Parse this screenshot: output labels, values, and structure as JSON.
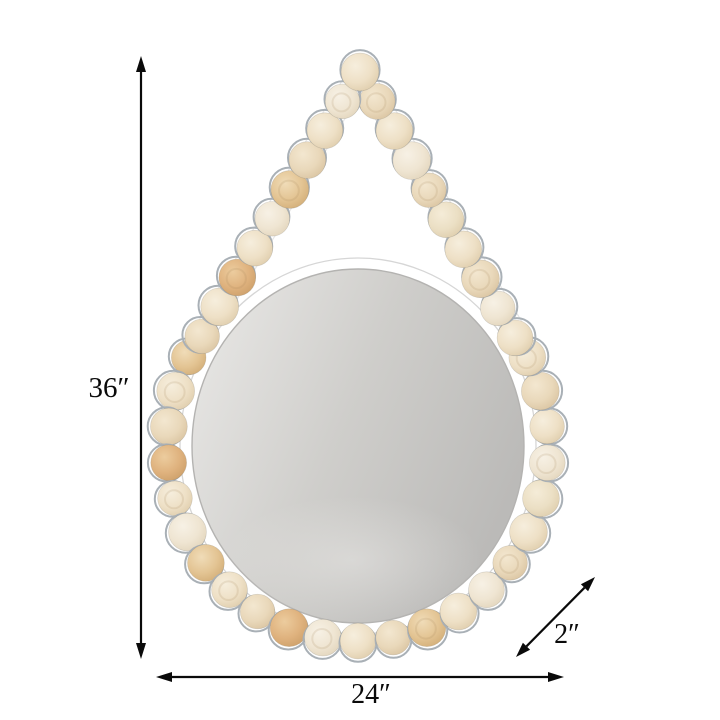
{
  "diagram": {
    "subject": "beaded-teardrop-hanging-mirror",
    "dimensions": {
      "height_label": "36″",
      "width_label": "24″",
      "depth_label": "2″"
    }
  },
  "colors": {
    "background": "#ffffff",
    "line": "#0a0a0a",
    "glass": {
      "light": "#e9e8e6",
      "mid": "#cfcecb",
      "dark": "#bbbab8",
      "edge": "#b4b3b1",
      "sheen": "#f2f1ef"
    },
    "backing": {
      "fill": "#ffffff",
      "edge": "#d6d6d6"
    },
    "strap": {
      "fill": "#ffffff",
      "edge": "#e7e7e7"
    },
    "cup": "#a9b0b6",
    "bead_grain": "rgba(160,128,88,0.16)",
    "bead_palette": [
      {
        "hi": "#f6eedd",
        "base": "#eee0c6",
        "edge": "#dcc9a7"
      },
      {
        "hi": "#f3e7d0",
        "base": "#e9d8ba",
        "edge": "#d7c09c"
      },
      {
        "hi": "#f7f1e5",
        "base": "#efe5d2",
        "edge": "#e0d2b8"
      },
      {
        "hi": "#f0dcb8",
        "base": "#e3c493",
        "edge": "#cfa972"
      },
      {
        "hi": "#eccc9e",
        "base": "#dfb27e",
        "edge": "#c99c66"
      },
      {
        "hi": "#f5ecd8",
        "base": "#ebdfc4",
        "edge": "#dccaa8"
      }
    ]
  }
}
